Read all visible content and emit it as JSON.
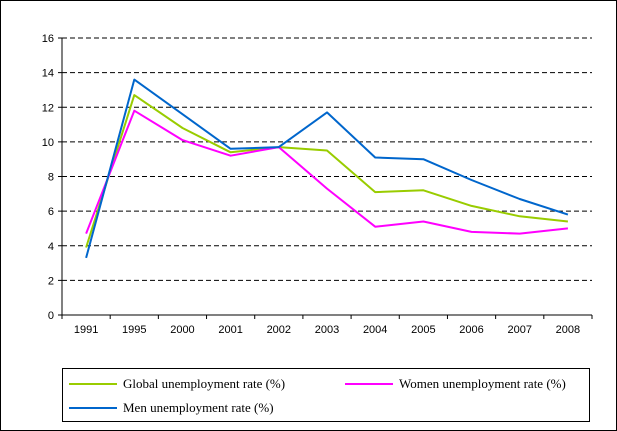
{
  "chart_data": {
    "type": "line",
    "categories": [
      "1991",
      "1995",
      "2000",
      "2001",
      "2002",
      "2003",
      "2004",
      "2005",
      "2006",
      "2007",
      "2008"
    ],
    "series": [
      {
        "name": "Global unemployment rate (%)",
        "color": "#99cc00",
        "values": [
          3.9,
          12.7,
          10.8,
          9.4,
          9.7,
          9.5,
          7.1,
          7.2,
          6.3,
          5.7,
          5.4
        ]
      },
      {
        "name": "Women unemployment rate (%)",
        "color": "#ff00ff",
        "values": [
          4.7,
          11.8,
          10.1,
          9.2,
          9.7,
          7.3,
          5.1,
          5.4,
          4.8,
          4.7,
          5.0
        ]
      },
      {
        "name": "Men unemployment rate (%)",
        "color": "#0066cc",
        "values": [
          3.3,
          13.6,
          11.6,
          9.6,
          9.7,
          11.7,
          9.1,
          9.0,
          7.8,
          6.7,
          5.8
        ]
      }
    ],
    "yticks": [
      0,
      2,
      4,
      6,
      8,
      10,
      12,
      14,
      16
    ],
    "ylim": [
      0,
      16
    ],
    "title": "",
    "xlabel": "",
    "ylabel": "",
    "grid": "horizontal-dashed",
    "legend": "bottom"
  }
}
